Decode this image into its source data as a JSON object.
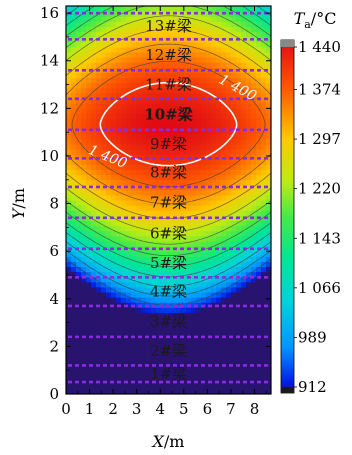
{
  "chart_data": {
    "type": "heatmap",
    "xlabel": {
      "var": "X",
      "unit": "/m"
    },
    "ylabel": {
      "var": "Y",
      "unit": "/m"
    },
    "xlim": [
      0,
      8.7
    ],
    "ylim": [
      0,
      16.3
    ],
    "x_ticks": [
      "0",
      "1",
      "2",
      "3",
      "4",
      "5",
      "6",
      "7",
      "8"
    ],
    "y_ticks": [
      "0",
      "2",
      "4",
      "6",
      "8",
      "10",
      "12",
      "14",
      "16"
    ],
    "colorbar": {
      "title_main": "T",
      "title_sub": "a",
      "title_unit": "/°C",
      "min": 912,
      "max": 1440,
      "tick_values": [
        1440,
        1374,
        1297,
        1220,
        1143,
        1066,
        989,
        912
      ],
      "tick_labels": [
        "1 440",
        "1 374",
        "1 297",
        "1 220",
        "1 143",
        "1 066",
        "989",
        "912"
      ]
    },
    "contour_labels": [
      {
        "text": "1 400",
        "x": 7.2,
        "y": 12.7
      },
      {
        "text": "1 400",
        "x": 1.7,
        "y": 9.8
      }
    ],
    "beams": [
      {
        "label": "1#梁",
        "y_bottom": 0.5,
        "y_top": 1.2,
        "bold": false
      },
      {
        "label": "2#梁",
        "y_bottom": 1.2,
        "y_top": 2.4,
        "bold": false
      },
      {
        "label": "3#梁",
        "y_bottom": 2.4,
        "y_top": 3.7,
        "bold": false
      },
      {
        "label": "4#梁",
        "y_bottom": 3.7,
        "y_top": 4.9,
        "bold": false
      },
      {
        "label": "5#梁",
        "y_bottom": 4.9,
        "y_top": 6.1,
        "bold": false
      },
      {
        "label": "6#梁",
        "y_bottom": 6.1,
        "y_top": 7.4,
        "bold": false
      },
      {
        "label": "7#梁",
        "y_bottom": 7.4,
        "y_top": 8.7,
        "bold": false
      },
      {
        "label": "8#梁",
        "y_bottom": 8.7,
        "y_top": 9.9,
        "bold": false
      },
      {
        "label": "9#梁",
        "y_bottom": 9.9,
        "y_top": 11.1,
        "bold": false
      },
      {
        "label": "10#梁",
        "y_bottom": 11.1,
        "y_top": 12.4,
        "bold": true
      },
      {
        "label": "11#梁",
        "y_bottom": 12.4,
        "y_top": 13.6,
        "bold": false
      },
      {
        "label": "12#梁",
        "y_bottom": 13.6,
        "y_top": 14.9,
        "bold": false
      },
      {
        "label": "13#梁",
        "y_bottom": 14.9,
        "y_top": 16.0,
        "bold": false
      }
    ],
    "contour_levels": [
      960,
      1000,
      1040,
      1080,
      1120,
      1160,
      1200,
      1240,
      1280,
      1320,
      1360,
      1400
    ],
    "highlight_level": 1400,
    "colors": {
      "beam_line": "#8a2be2",
      "highlight_contour": "#ffffff",
      "contour": "#3a3a3a"
    }
  }
}
